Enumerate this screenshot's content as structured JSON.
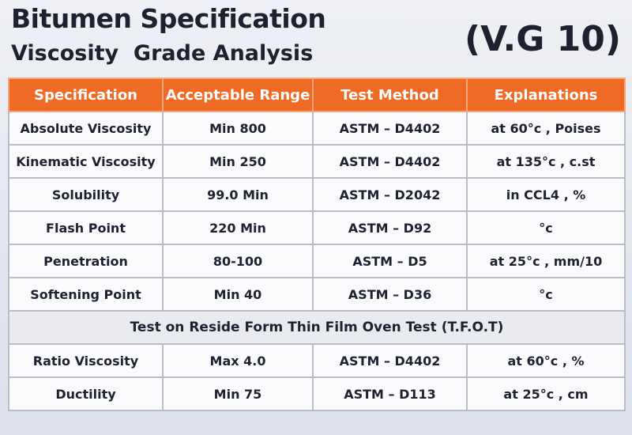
{
  "header": {
    "title": "Bitumen Specification",
    "subtitle": "Viscosity  Grade Analysis",
    "grade": "(V.G 10)"
  },
  "table": {
    "columns": [
      "Specification",
      "Acceptable Range",
      "Test Method",
      "Explanations"
    ],
    "rows": [
      [
        "Absolute Viscosity",
        "Min 800",
        "ASTM – D4402",
        "at 60°c , Poises"
      ],
      [
        "Kinematic Viscosity",
        "Min 250",
        "ASTM – D4402",
        "at 135°c , c.st"
      ],
      [
        "Solubility",
        "99.0 Min",
        "ASTM – D2042",
        "in CCL4 , %"
      ],
      [
        "Flash Point",
        "220 Min",
        "ASTM – D92",
        "°c"
      ],
      [
        "Penetration",
        "80-100",
        "ASTM – D5",
        "at 25°c , mm/10"
      ],
      [
        "Softening Point",
        "Min 40",
        "ASTM – D36",
        "°c"
      ]
    ],
    "section": "Test on Reside Form Thin Film Oven Test (T.F.O.T)",
    "rows_after": [
      [
        "Ratio Viscosity",
        "Max 4.0",
        "ASTM – D4402",
        "at 60°c , %"
      ],
      [
        "Ductility",
        "Min 75",
        "ASTM – D113",
        "at 25°c , cm"
      ]
    ]
  }
}
